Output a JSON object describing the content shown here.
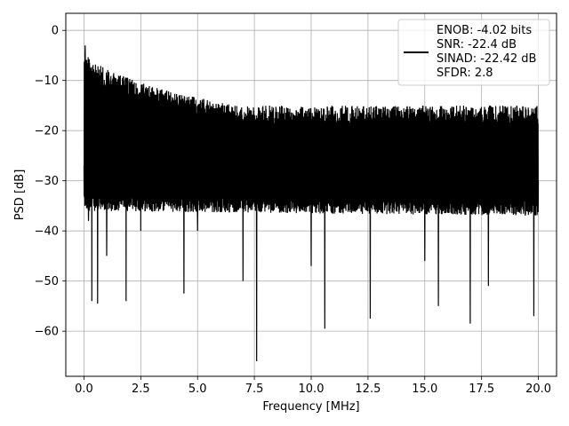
{
  "chart_data": {
    "type": "line",
    "xlabel": "Frequency [MHz]",
    "ylabel": "PSD [dB]",
    "xlim": [
      -0.8,
      20.8
    ],
    "ylim": [
      -69,
      3.4
    ],
    "x_ticks": [
      0.0,
      2.5,
      5.0,
      7.5,
      10.0,
      12.5,
      15.0,
      17.5,
      20.0
    ],
    "x_tick_labels": [
      "0.0",
      "2.5",
      "5.0",
      "7.5",
      "10.0",
      "12.5",
      "15.0",
      "17.5",
      "20.0"
    ],
    "y_ticks": [
      0,
      -10,
      -20,
      -30,
      -40,
      -50,
      -60
    ],
    "y_tick_labels": [
      "0",
      "−10",
      "−20",
      "−30",
      "−40",
      "−50",
      "−60"
    ],
    "grid": true,
    "legend_position": "upper-right",
    "series": [
      {
        "name": "ENOB: -4.02 bits\nSNR: -22.4 dB\nSINAD: -22.42 dB\nSFDR: 2.8",
        "color": "#000000",
        "description_points": {
          "x": [
            0.0,
            0.05,
            0.1,
            0.2,
            0.35,
            0.6,
            1.0,
            1.85,
            2.5,
            4.4,
            5.0,
            7.0,
            7.6,
            10.0,
            10.6,
            12.6,
            15.0,
            15.6,
            17.0,
            17.8,
            19.8,
            20.0
          ],
          "y": [
            -27.0,
            -3.0,
            -8.0,
            -38.0,
            -54.0,
            -54.5,
            -45.0,
            -54.0,
            -40.0,
            -52.5,
            -40.0,
            -50.0,
            -66.0,
            -47.0,
            -59.5,
            -57.5,
            -46.0,
            -55.0,
            -58.5,
            -51.0,
            -57.0,
            -30.0
          ]
        },
        "upper_envelope_start": -3.0,
        "upper_envelope_end": -15.0,
        "lower_bulk_start": -36.0,
        "lower_bulk_end": -37.0
      }
    ],
    "legend_lines": [
      "ENOB: -4.02 bits",
      "SNR: -22.4 dB",
      "SINAD: -22.42 dB",
      "SFDR: 2.8"
    ]
  }
}
